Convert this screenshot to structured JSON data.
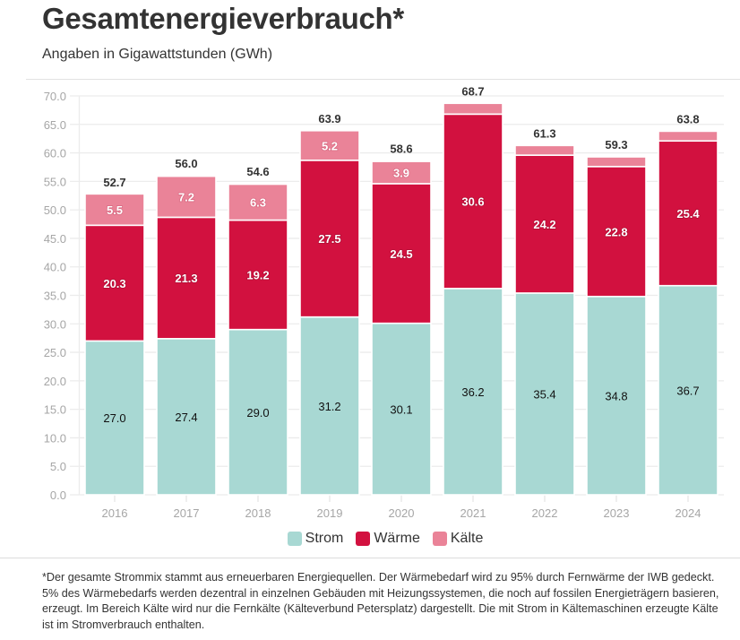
{
  "header": {
    "title": "Gesamtenergieverbrauch*",
    "subtitle": "Angaben in Gigawattstunden (GWh)"
  },
  "legend": [
    {
      "label": "Strom",
      "color": "#a8d8d3"
    },
    {
      "label": "Wärme",
      "color": "#d2113f"
    },
    {
      "label": "Kälte",
      "color": "#ea8398"
    }
  ],
  "footnote": "*Der gesamte Strommix stammt aus erneuerbaren Energiequellen. Der Wärmebedarf wird zu 95% durch Fernwärme der IWB gedeckt. 5% des Wärmebedarfs werden dezentral in einzelnen Gebäuden mit Heizungssystemen, die noch auf fossilen Energieträgern basieren, erzeugt. Im Bereich Kälte wird nur die Fernkälte (Kälteverbund Petersplatz) dargestellt. Die mit Strom in Kältemaschinen erzeugte Kälte ist im Stromverbrauch enthalten.",
  "chart_data": {
    "type": "bar",
    "stacked": true,
    "title": "Gesamtenergieverbrauch*",
    "subtitle": "Angaben in Gigawattstunden (GWh)",
    "xlabel": "",
    "ylabel": "",
    "categories": [
      "2016",
      "2017",
      "2018",
      "2019",
      "2020",
      "2021",
      "2022",
      "2023",
      "2024"
    ],
    "series": [
      {
        "name": "Strom",
        "color": "#a8d8d3",
        "values": [
          27.0,
          27.4,
          29.0,
          31.2,
          30.1,
          36.2,
          35.4,
          34.8,
          36.7
        ],
        "labels_shown": [
          true,
          true,
          true,
          true,
          true,
          true,
          true,
          true,
          true
        ]
      },
      {
        "name": "Wärme",
        "color": "#d2113f",
        "values": [
          20.3,
          21.3,
          19.2,
          27.5,
          24.5,
          30.6,
          24.2,
          22.8,
          25.4
        ],
        "labels_shown": [
          true,
          true,
          true,
          true,
          true,
          true,
          true,
          true,
          true
        ]
      },
      {
        "name": "Kälte",
        "color": "#ea8398",
        "values": [
          5.5,
          7.2,
          6.3,
          5.2,
          3.9,
          1.9,
          1.7,
          1.7,
          1.7
        ],
        "labels_shown": [
          true,
          true,
          true,
          true,
          true,
          false,
          false,
          false,
          false
        ]
      }
    ],
    "totals": [
      52.7,
      56.0,
      54.6,
      63.9,
      58.6,
      68.7,
      61.3,
      59.3,
      63.8
    ],
    "yticks": [
      "0.0",
      "5.0",
      "10.0",
      "15.0",
      "20.0",
      "25.0",
      "30.0",
      "35.0",
      "40.0",
      "45.0",
      "50.0",
      "55.0",
      "60.0",
      "65.0",
      "70.0"
    ],
    "ylim": [
      0,
      70
    ],
    "grid": true,
    "legend_position": "bottom-center"
  }
}
